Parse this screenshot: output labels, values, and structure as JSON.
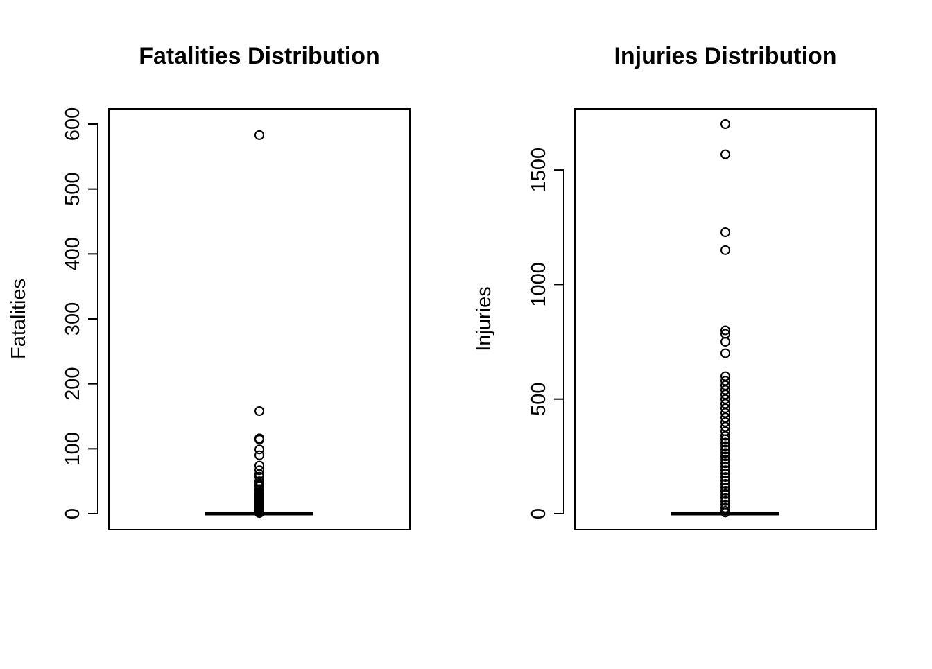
{
  "chart_data": [
    {
      "type": "boxplot",
      "title": "Fatalities Distribution",
      "xlabel": "",
      "ylabel": "Fatalities",
      "ylim": [
        0,
        600
      ],
      "yticks": [
        0,
        100,
        200,
        300,
        400,
        500,
        600
      ],
      "tick_labels": [
        "0",
        "100",
        "200",
        "300",
        "400",
        "500",
        "600"
      ],
      "grid": false,
      "box": {
        "min": 0,
        "q1": 0,
        "median": 0,
        "q3": 0,
        "max": 0
      },
      "outliers": [
        583,
        158,
        116,
        114,
        99,
        90,
        74,
        67,
        61,
        57,
        50,
        47,
        44,
        42,
        38,
        36,
        33,
        31,
        29,
        27,
        25,
        23,
        21,
        19,
        17,
        15,
        13,
        11,
        9,
        7,
        5,
        3,
        1
      ]
    },
    {
      "type": "boxplot",
      "title": "Injuries Distribution",
      "xlabel": "",
      "ylabel": "Injuries",
      "ylim": [
        0,
        1700
      ],
      "yticks": [
        0,
        500,
        1000,
        1500
      ],
      "tick_labels": [
        "0",
        "500",
        "1000",
        "1500"
      ],
      "grid": false,
      "box": {
        "min": 0,
        "q1": 0,
        "median": 0,
        "q3": 0,
        "max": 0
      },
      "outliers": [
        1700,
        1568,
        1228,
        1150,
        800,
        785,
        750,
        700,
        600,
        580,
        560,
        540,
        520,
        500,
        480,
        460,
        440,
        420,
        400,
        380,
        360,
        340,
        325,
        310,
        295,
        280,
        265,
        250,
        235,
        220,
        205,
        190,
        175,
        160,
        145,
        130,
        115,
        100,
        85,
        70,
        55,
        40,
        25,
        12,
        5
      ]
    }
  ]
}
